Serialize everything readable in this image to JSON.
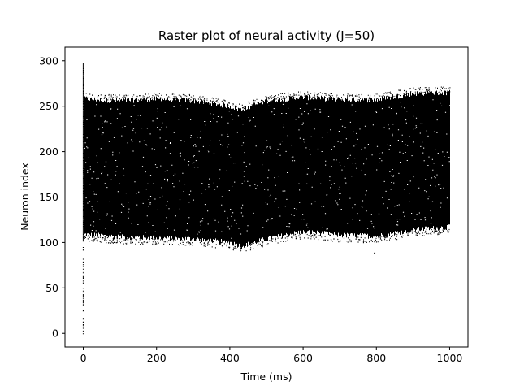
{
  "chart_data": {
    "type": "scatter",
    "title": "Raster plot of neural activity (J=50)",
    "xlabel": "Time (ms)",
    "ylabel": "Neuron index",
    "xlim": [
      -50,
      1050
    ],
    "ylim": [
      -15,
      315
    ],
    "xticks": [
      0,
      200,
      400,
      600,
      800,
      1000
    ],
    "yticks": [
      0,
      50,
      100,
      150,
      200,
      250,
      300
    ],
    "marker_color": "#000000",
    "grid": false,
    "legend": "none",
    "initial_column": {
      "time": 0,
      "neuron_min": 0,
      "neuron_max": 298
    },
    "active_band_time_range": [
      0,
      1000
    ],
    "active_band_lower_edge": {
      "t": [
        0,
        100,
        200,
        300,
        400,
        430,
        500,
        600,
        700,
        800,
        900,
        1000
      ],
      "neuron": [
        109,
        106,
        105,
        104,
        100,
        96,
        104,
        112,
        108,
        107,
        114,
        117
      ]
    },
    "active_band_upper_edge": {
      "t": [
        0,
        100,
        200,
        300,
        400,
        430,
        500,
        600,
        700,
        800,
        900,
        1000
      ],
      "neuron": [
        258,
        256,
        258,
        256,
        250,
        246,
        256,
        260,
        257,
        257,
        264,
        265
      ]
    },
    "outlier_points": [
      {
        "t": 795,
        "neuron": 88
      }
    ]
  }
}
